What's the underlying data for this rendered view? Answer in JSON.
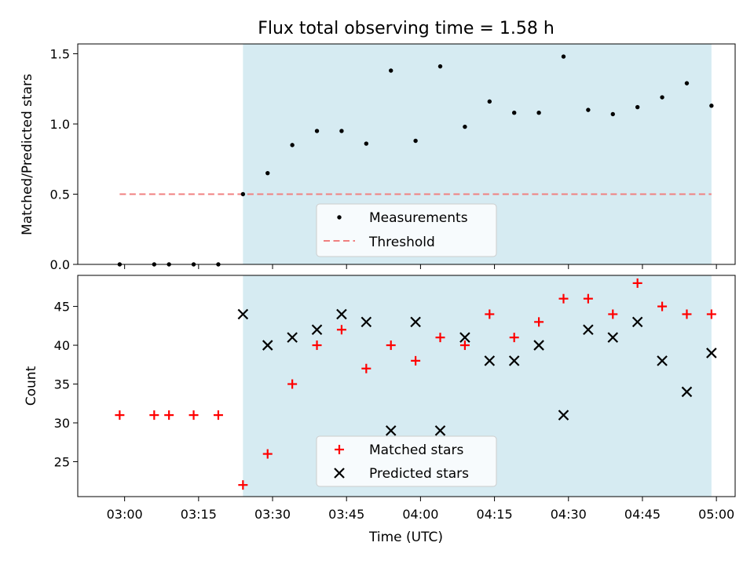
{
  "chart_data": [
    {
      "type": "scatter",
      "title": "Flux total observing time = 1.58 h",
      "ylabel": "Matched/Predicted stars",
      "xlabel": "",
      "ylim": [
        0,
        1.57
      ],
      "yticks": [
        "0.0",
        "0.5",
        "1.0",
        "1.5"
      ],
      "shaded_region": {
        "x_start": "03:24",
        "x_end": "04:59",
        "color": "#add8e6"
      },
      "legend_position": "lower-center",
      "series": [
        {
          "name": "Measurements",
          "marker": "dot",
          "color": "#000000",
          "x": [
            "02:59",
            "03:06",
            "03:09",
            "03:14",
            "03:19",
            "03:24",
            "03:29",
            "03:34",
            "03:39",
            "03:44",
            "03:49",
            "03:54",
            "03:59",
            "04:04",
            "04:09",
            "04:14",
            "04:19",
            "04:24",
            "04:29",
            "04:34",
            "04:39",
            "04:44",
            "04:49",
            "04:54",
            "04:59"
          ],
          "y": [
            0,
            0,
            0,
            0,
            0,
            0.5,
            0.65,
            0.85,
            0.95,
            0.95,
            0.86,
            1.38,
            0.88,
            1.41,
            0.98,
            1.16,
            1.08,
            1.08,
            1.48,
            1.1,
            1.07,
            1.12,
            1.19,
            1.29,
            1.13
          ]
        },
        {
          "name": "Threshold",
          "line_style": "dashed",
          "color": "#f08080",
          "x": [
            "02:59",
            "04:59"
          ],
          "y": [
            0.5,
            0.5
          ]
        }
      ]
    },
    {
      "type": "scatter",
      "xlabel": "Time (UTC)",
      "ylabel": "Count",
      "ylim": [
        20.5,
        49
      ],
      "yticks": [
        "25",
        "30",
        "35",
        "40",
        "45"
      ],
      "xticks": [
        "03:00",
        "03:15",
        "03:30",
        "03:45",
        "04:00",
        "04:15",
        "04:30",
        "04:45",
        "05:00"
      ],
      "shaded_region": {
        "x_start": "03:24",
        "x_end": "04:59",
        "color": "#add8e6"
      },
      "legend_position": "lower-center",
      "series": [
        {
          "name": "Matched stars",
          "marker": "plus",
          "color": "#ff0000",
          "x": [
            "02:59",
            "03:06",
            "03:09",
            "03:14",
            "03:19",
            "03:24",
            "03:29",
            "03:34",
            "03:39",
            "03:44",
            "03:49",
            "03:54",
            "03:59",
            "04:04",
            "04:09",
            "04:14",
            "04:19",
            "04:24",
            "04:29",
            "04:34",
            "04:39",
            "04:44",
            "04:49",
            "04:54",
            "04:59"
          ],
          "y": [
            31,
            31,
            31,
            31,
            31,
            22,
            26,
            35,
            40,
            42,
            37,
            40,
            38,
            41,
            40,
            44,
            41,
            43,
            46,
            46,
            44,
            48,
            45,
            44,
            44
          ]
        },
        {
          "name": "Predicted stars",
          "marker": "x",
          "color": "#000000",
          "x": [
            "03:24",
            "03:29",
            "03:34",
            "03:39",
            "03:44",
            "03:49",
            "03:54",
            "03:59",
            "04:04",
            "04:09",
            "04:14",
            "04:19",
            "04:24",
            "04:29",
            "04:34",
            "04:39",
            "04:44",
            "04:49",
            "04:54",
            "04:59"
          ],
          "y": [
            44,
            40,
            41,
            42,
            44,
            43,
            29,
            43,
            29,
            41,
            38,
            38,
            40,
            31,
            42,
            41,
            43,
            38,
            34,
            39
          ]
        }
      ]
    }
  ]
}
